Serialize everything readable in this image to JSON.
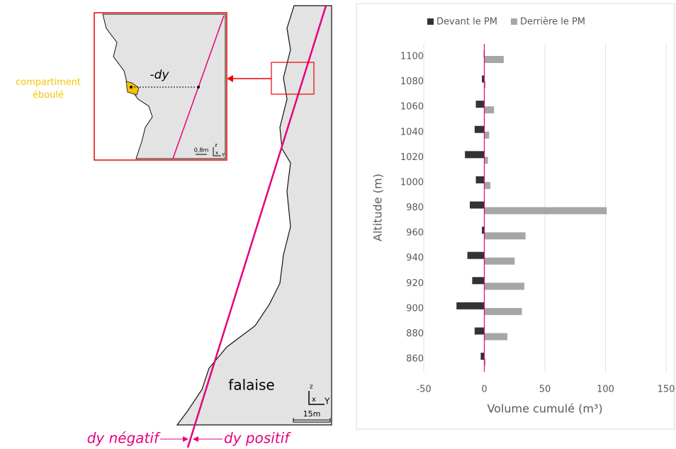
{
  "diagram": {
    "label_compartment": "compartiment éboulé",
    "label_dy": "-dy",
    "inset_scale": "0,8m",
    "axis_z": "z",
    "axis_x": "x",
    "axis_y": "Y",
    "label_cliff": "falaise",
    "scale": "15m",
    "label_negative": "dy négatif",
    "label_positive": "dy positif"
  },
  "chart_data": {
    "type": "bar",
    "orientation": "horizontal",
    "x_label": "Volume cumulé (m³)",
    "y_label": "Altitude (m)",
    "categories": [
      860,
      880,
      900,
      920,
      940,
      960,
      980,
      1000,
      1020,
      1040,
      1060,
      1080,
      1100
    ],
    "series": [
      {
        "name": "Devant le PM",
        "color": "#333333",
        "values": [
          -3,
          -8,
          -23,
          -10,
          -14,
          -2,
          -12,
          -7,
          -16,
          -8,
          -7,
          -2,
          -0.5
        ]
      },
      {
        "name": "Derrière le PM",
        "color": "#a6a6a6",
        "values": [
          1,
          19,
          31,
          33,
          25,
          34,
          101,
          5,
          3,
          4,
          8,
          1,
          16
        ]
      }
    ],
    "xlim": [
      -50,
      150
    ],
    "xticks": [
      -50,
      0,
      50,
      100,
      150
    ],
    "grid": true,
    "zero_line_color": "#e6007e",
    "legend": "top"
  }
}
